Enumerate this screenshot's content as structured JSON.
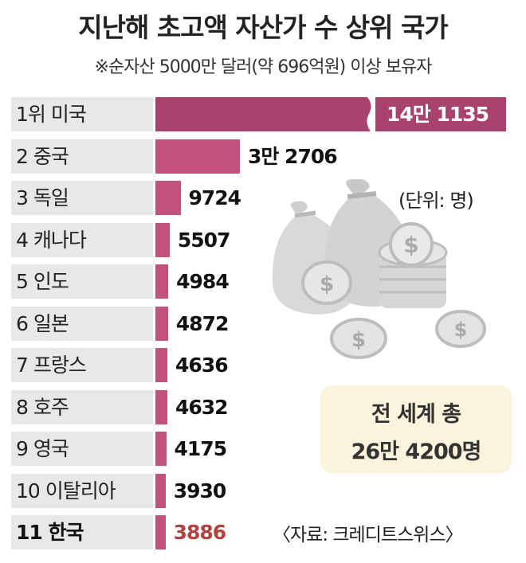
{
  "title": "지난해 초고액 자산가 수 상위 국가",
  "subtitle": "※순자산 5000만 달러(약 696억원) 이상 보유자",
  "unit_label": "(단위: 명)",
  "total": {
    "line1": "전 세계 총",
    "line2": "26만 4200명"
  },
  "source": "〈자료: 크레디트스위스〉",
  "colors": {
    "bar": "#c2537d",
    "highlight_text": "#b0433d",
    "row_bg": "#e8e8e8",
    "total_bg": "#fbf3dc"
  },
  "illustration": "money-bags-and-dollar-coins",
  "chart_data": {
    "type": "bar",
    "orientation": "horizontal",
    "title": "지난해 초고액 자산가 수 상위 국가",
    "categories": [
      "1위 미국",
      "2 중국",
      "3 독일",
      "4 캐나다",
      "5 인도",
      "6 일본",
      "7 프랑스",
      "8 호주",
      "9 영국",
      "10 이탈리아",
      "11 한국"
    ],
    "values": [
      141135,
      32706,
      9724,
      5507,
      4984,
      4872,
      4636,
      4632,
      4175,
      3930,
      3886
    ],
    "value_labels": [
      "14만 1135",
      "3만 2706",
      "9724",
      "5507",
      "4984",
      "4872",
      "4636",
      "4632",
      "4175",
      "3930",
      "3886"
    ],
    "highlight_index": 10,
    "broken_axis_index": 0,
    "unit": "명"
  }
}
